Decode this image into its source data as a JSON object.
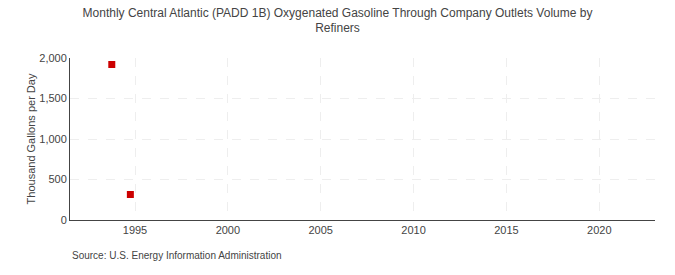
{
  "chart_data": {
    "type": "scatter",
    "title": "Monthly Central Atlantic (PADD 1B) Oxygenated Gasoline Through Company Outlets Volume by\nRefiners",
    "y_label": "Thousand Gallons per Day",
    "annotations": [
      "Source: U.S. Energy Information Administration"
    ],
    "x": [
      1993.75,
      1994.75
    ],
    "values": [
      1920,
      315
    ],
    "color": "#cc0000",
    "marker": "square",
    "xlim": [
      1991.5,
      2023
    ],
    "xticks": [
      1995,
      2000,
      2005,
      2010,
      2015,
      2020
    ],
    "ylim": [
      0,
      2000
    ],
    "yticks": [
      0,
      500,
      {
        "value": 1000,
        "label": "1,000"
      },
      {
        "value": 1500,
        "label": "1,500"
      },
      {
        "value": 2000,
        "label": "2,000"
      }
    ],
    "grid": true
  }
}
